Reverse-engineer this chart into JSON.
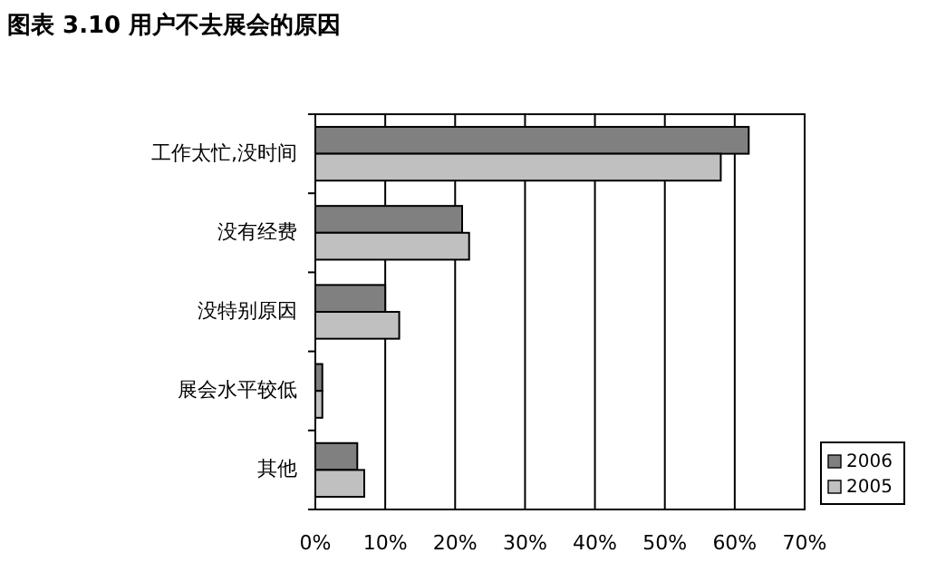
{
  "chart_data": {
    "type": "bar",
    "orientation": "horizontal",
    "title": "图表 3.10 用户不去展会的原因",
    "categories": [
      "工作太忙,没时间",
      "没有经费",
      "没特别原因",
      "展会水平较低",
      "其他"
    ],
    "series": [
      {
        "name": "2006",
        "color": "#808080",
        "values": [
          62,
          21,
          10,
          1,
          6
        ]
      },
      {
        "name": "2005",
        "color": "#c0c0c0",
        "values": [
          58,
          22,
          12,
          1,
          7
        ]
      }
    ],
    "xlim": [
      0,
      70
    ],
    "xticks": [
      {
        "value": 0,
        "label": "0%"
      },
      {
        "value": 10,
        "label": "10%"
      },
      {
        "value": 20,
        "label": "20%"
      },
      {
        "value": 30,
        "label": "30%"
      },
      {
        "value": 40,
        "label": "40%"
      },
      {
        "value": 50,
        "label": "50%"
      },
      {
        "value": 60,
        "label": "60%"
      },
      {
        "value": 70,
        "label": "70%"
      }
    ],
    "grid": "x",
    "legend": "right"
  }
}
